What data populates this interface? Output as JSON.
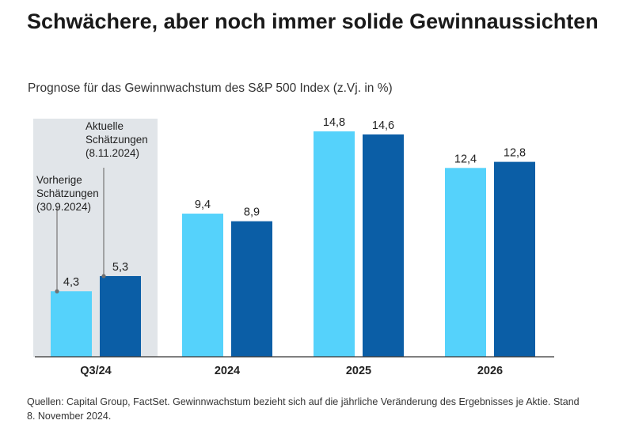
{
  "headline": "Schwächere, aber noch immer solide Gewinnaussichten",
  "source_note": "Quellen: Capital Group, FactSet. Gewinnwachstum bezieht sich auf die jährliche Veränderung des Ergebnisses je Aktie. Stand 8. November 2024.",
  "colors": {
    "previous": "#55d2fb",
    "current": "#0b5ea6",
    "highlight_band": "#e1e5e9",
    "axis": "#333333",
    "callout_line": "#8c8c8c"
  },
  "chart_data": {
    "type": "bar",
    "title": "Prognose für das Gewinnwachstum des S&P 500 Index (z.Vj. in %)",
    "xlabel": "",
    "ylabel": "",
    "ylim": [
      0,
      16
    ],
    "grid": false,
    "categories": [
      "Q3/24",
      "2024",
      "2025",
      "2026"
    ],
    "series": [
      {
        "name": "Vorherige Schätzungen (30.9.2024)",
        "values": [
          4.3,
          9.4,
          14.8,
          12.4
        ],
        "labels": [
          "4,3",
          "9,4",
          "14,8",
          "12,4"
        ]
      },
      {
        "name": "Aktuelle Schätzungen (8.11.2024)",
        "values": [
          5.3,
          8.9,
          14.6,
          12.8
        ],
        "labels": [
          "5,3",
          "8,9",
          "14,6",
          "12,8"
        ]
      }
    ],
    "highlighted_category": "Q3/24",
    "annotations": [
      {
        "series": 0,
        "lines": [
          "Vorherige",
          "Schätzungen",
          "(30.9.2024)"
        ]
      },
      {
        "series": 1,
        "lines": [
          "Aktuelle",
          "Schätzungen",
          "(8.11.2024)"
        ]
      }
    ]
  }
}
